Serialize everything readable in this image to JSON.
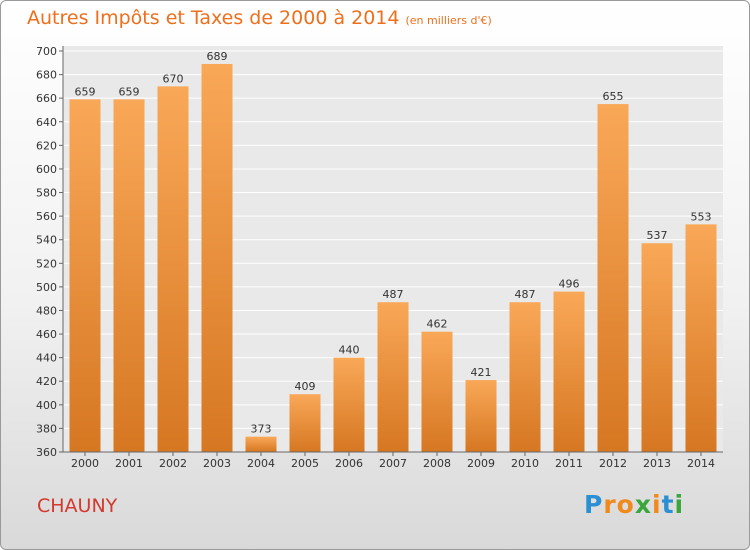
{
  "title": "Autres Impôts et Taxes de 2000 à 2014",
  "unit": "(en milliers d'€)",
  "city": "CHAUNY",
  "logo": {
    "letters": [
      {
        "ch": "P",
        "color": "#2b8fd4"
      },
      {
        "ch": "r",
        "color": "#f08a1e"
      },
      {
        "ch": "o",
        "color": "#f08a1e"
      },
      {
        "ch": "x",
        "color": "#3aa63c"
      },
      {
        "ch": "i",
        "color": "#f08a1e"
      },
      {
        "ch": "t",
        "color": "#2b8fd4"
      },
      {
        "ch": "i",
        "color": "#3aa63c"
      }
    ]
  },
  "colors": {
    "title": "#ee6f1c",
    "bar_light": "#f9a858",
    "bar_dark": "#d67722",
    "city": "#d3392e"
  },
  "chart_data": {
    "type": "bar",
    "categories": [
      "2000",
      "2001",
      "2002",
      "2003",
      "2004",
      "2005",
      "2006",
      "2007",
      "2008",
      "2009",
      "2010",
      "2011",
      "2012",
      "2013",
      "2014"
    ],
    "values": [
      659,
      659,
      670,
      689,
      373,
      409,
      440,
      487,
      462,
      421,
      487,
      496,
      655,
      537,
      553
    ],
    "title": "Autres Impôts et Taxes de 2000 à 2014",
    "ylim": [
      360,
      700
    ],
    "yticks": [
      360,
      380,
      400,
      420,
      440,
      460,
      480,
      500,
      520,
      540,
      560,
      580,
      600,
      620,
      640,
      660,
      680,
      700
    ],
    "grid": true,
    "legend": "none"
  }
}
